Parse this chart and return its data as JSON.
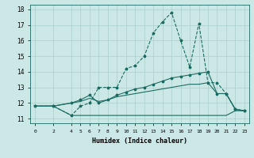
{
  "xlabel": "Humidex (Indice chaleur)",
  "bg_color": "#cce8e6",
  "grid_color": "#aacfcc",
  "line_color": "#1a6b63",
  "xticks": [
    0,
    2,
    4,
    5,
    6,
    7,
    8,
    9,
    10,
    11,
    12,
    13,
    14,
    15,
    16,
    17,
    18,
    19,
    20,
    21,
    22,
    23
  ],
  "yticks": [
    11,
    12,
    13,
    14,
    15,
    16,
    17,
    18
  ],
  "xlim": [
    -0.5,
    23.5
  ],
  "ylim": [
    10.7,
    18.3
  ],
  "lines": [
    {
      "x": [
        0,
        2,
        4,
        5,
        6,
        7,
        8,
        9,
        10,
        11,
        12,
        13,
        14,
        15,
        16,
        17,
        18,
        19,
        20,
        21,
        22,
        23
      ],
      "y": [
        11.8,
        11.8,
        11.2,
        11.8,
        12.0,
        13.0,
        13.0,
        13.0,
        14.2,
        14.4,
        15.0,
        16.5,
        17.2,
        17.8,
        16.0,
        14.3,
        17.1,
        13.3,
        13.3,
        12.6,
        11.6,
        11.5
      ],
      "linestyle": "--",
      "marker": true
    },
    {
      "x": [
        0,
        2,
        4,
        5,
        6,
        7,
        8,
        9,
        10,
        11,
        12,
        13,
        14,
        15,
        16,
        17,
        18,
        19,
        20,
        21,
        22,
        23
      ],
      "y": [
        11.8,
        11.8,
        12.0,
        12.2,
        12.5,
        12.0,
        12.2,
        12.5,
        12.7,
        12.9,
        13.0,
        13.2,
        13.4,
        13.6,
        13.7,
        13.8,
        13.9,
        14.0,
        12.6,
        12.6,
        11.6,
        11.5
      ],
      "linestyle": "-",
      "marker": true
    },
    {
      "x": [
        0,
        2,
        4,
        5,
        6,
        7,
        8,
        9,
        10,
        11,
        12,
        13,
        14,
        15,
        16,
        17,
        18,
        19,
        20,
        21,
        22,
        23
      ],
      "y": [
        11.8,
        11.8,
        11.2,
        11.2,
        11.2,
        11.2,
        11.2,
        11.2,
        11.2,
        11.2,
        11.2,
        11.2,
        11.2,
        11.2,
        11.2,
        11.2,
        11.2,
        11.2,
        11.2,
        11.2,
        11.5,
        11.5
      ],
      "linestyle": "-",
      "marker": false
    },
    {
      "x": [
        0,
        2,
        4,
        5,
        6,
        7,
        8,
        9,
        10,
        11,
        12,
        13,
        14,
        15,
        16,
        17,
        18,
        19,
        20,
        21,
        22,
        23
      ],
      "y": [
        11.8,
        11.8,
        12.0,
        12.1,
        12.3,
        12.1,
        12.2,
        12.4,
        12.5,
        12.6,
        12.7,
        12.8,
        12.9,
        13.0,
        13.1,
        13.2,
        13.2,
        13.3,
        12.6,
        12.6,
        11.6,
        11.5
      ],
      "linestyle": "-",
      "marker": false
    }
  ]
}
